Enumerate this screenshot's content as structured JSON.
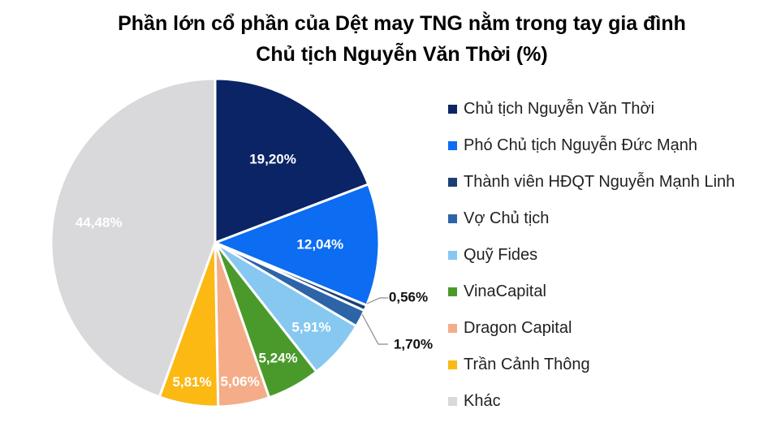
{
  "chart_data": {
    "type": "pie",
    "title_line1": "Phần lớn cổ phần của Dệt may TNG nằm trong tay gia đình",
    "title_line2": "Chủ tịch Nguyễn Văn Thời (%)",
    "slices": [
      {
        "name": "Chủ tịch Nguyễn Văn Thời",
        "value": 19.2,
        "label": "19,20%",
        "color": "#0b2466",
        "label_color": "#ffffff"
      },
      {
        "name": "Phó Chủ tịch Nguyễn Đức Mạnh",
        "value": 12.04,
        "label": "12,04%",
        "color": "#0c6cf2",
        "label_color": "#ffffff"
      },
      {
        "name": "Thành viên HĐQT Nguyễn Mạnh Linh",
        "value": 0.56,
        "label": "0,56%",
        "color": "#1c3f73",
        "label_color": "#111111"
      },
      {
        "name": "Vợ Chủ tịch",
        "value": 1.7,
        "label": "1,70%",
        "color": "#2d64a8",
        "label_color": "#111111"
      },
      {
        "name": "Quỹ Fides",
        "value": 5.91,
        "label": "5,91%",
        "color": "#86c8f0",
        "label_color": "#ffffff"
      },
      {
        "name": "VinaCapital",
        "value": 5.24,
        "label": "5,24%",
        "color": "#4a9a2b",
        "label_color": "#ffffff"
      },
      {
        "name": "Dragon Capital",
        "value": 5.06,
        "label": "5,06%",
        "color": "#f4ad88",
        "label_color": "#ffffff"
      },
      {
        "name": "Trần Cảnh Thông",
        "value": 5.81,
        "label": "5,81%",
        "color": "#fcb813",
        "label_color": "#ffffff"
      },
      {
        "name": "Khác",
        "value": 44.48,
        "label": "44,48%",
        "color": "#d9d8db",
        "label_color": "#ffffff"
      }
    ],
    "legend_position": "right"
  }
}
